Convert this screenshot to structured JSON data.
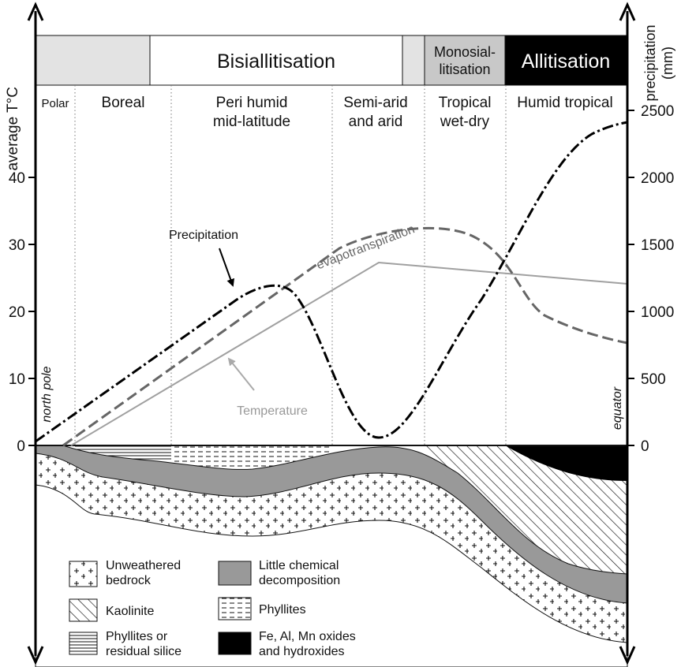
{
  "processes": [
    {
      "lines": [
        "Bisiallitisation"
      ]
    },
    {
      "lines": [
        "Monosial-",
        "litisation"
      ]
    },
    {
      "lines": [
        "Allitisation"
      ]
    }
  ],
  "zones": [
    {
      "lines": [
        "Polar"
      ]
    },
    {
      "lines": [
        "Boreal"
      ]
    },
    {
      "lines": [
        "Peri humid",
        "mid-latitude"
      ]
    },
    {
      "lines": [
        "Semi-arid",
        "and arid"
      ]
    },
    {
      "lines": [
        "Tropical",
        "wet-dry"
      ]
    },
    {
      "lines": [
        "Humid tropical"
      ]
    }
  ],
  "axes": {
    "left": {
      "title": "average T°C",
      "lim": [
        0,
        50
      ],
      "ticks": [
        0,
        10,
        20,
        30,
        40
      ]
    },
    "right": {
      "title_lines": [
        "precipitation",
        "(mm)"
      ],
      "lim": [
        0,
        2500
      ],
      "ticks": [
        0,
        500,
        1000,
        1500,
        2000,
        2500
      ]
    }
  },
  "curve_labels": {
    "precipitation": "Precipitation",
    "evapotranspiration": "evapotranspiration",
    "temperature": "Temperature"
  },
  "side_labels": {
    "north_pole": "north pole",
    "equator": "equator"
  },
  "legend": [
    {
      "lines": [
        "Unweathered",
        "bedrock"
      ]
    },
    {
      "lines": [
        "Kaolinite"
      ]
    },
    {
      "lines": [
        "Phyllites or",
        "residual silice"
      ]
    },
    {
      "lines": [
        "Little chemical",
        "decomposition"
      ]
    },
    {
      "lines": [
        "Phyllites"
      ]
    },
    {
      "lines": [
        "Fe, Al, Mn oxides",
        "and hydroxides"
      ]
    }
  ]
}
